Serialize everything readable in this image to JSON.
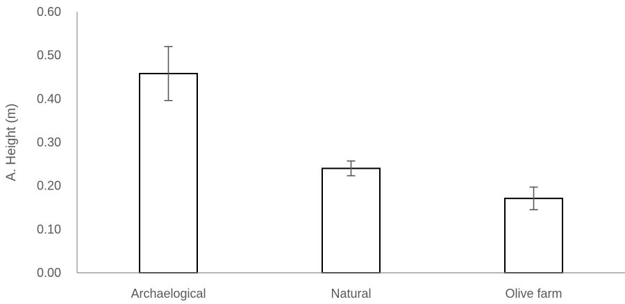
{
  "chart_data": {
    "type": "bar",
    "title": "",
    "xlabel": "",
    "ylabel": "A. Height (m)",
    "categories": [
      "Archaelogical",
      "Natural",
      "Olive farm"
    ],
    "values": [
      0.458,
      0.24,
      0.171
    ],
    "error_low": [
      0.062,
      0.017,
      0.026
    ],
    "error_high": [
      0.062,
      0.017,
      0.026
    ],
    "ylim": [
      0,
      0.6
    ],
    "yticks": [
      "0.00",
      "0.10",
      "0.20",
      "0.30",
      "0.40",
      "0.50",
      "0.60"
    ],
    "ytick_values": [
      0,
      0.1,
      0.2,
      0.3,
      0.4,
      0.5,
      0.6
    ],
    "grid": false,
    "legend": "none",
    "colors": {
      "bar_fill": "#ffffff",
      "bar_stroke": "#000000",
      "text": "#595959",
      "axis": "#8c8c8c"
    }
  }
}
